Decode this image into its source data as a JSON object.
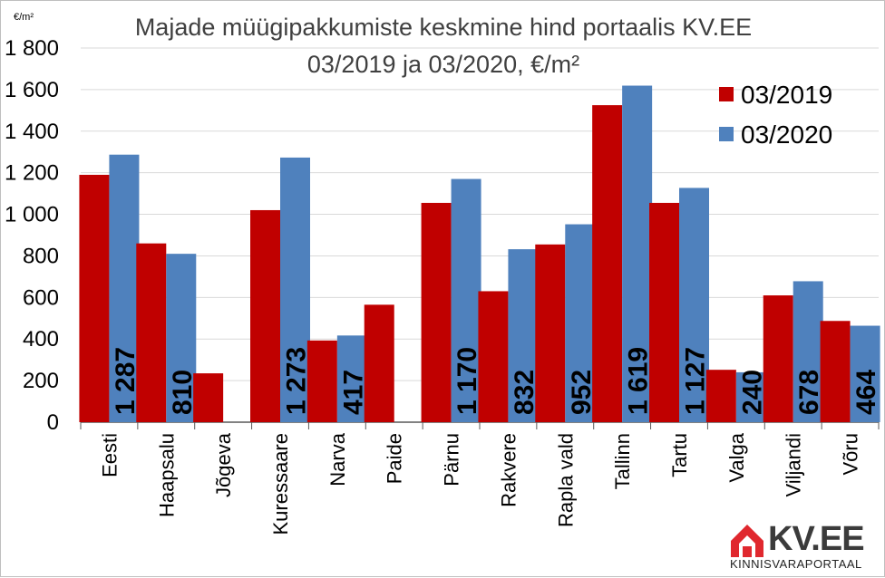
{
  "chart_data": {
    "type": "bar",
    "title": "Majade müügipakkumiste keskmine hind portaalis KV.EE",
    "subtitle": "03/2019 ja 03/2020, €/m²",
    "unit_label": "€/m²",
    "categories": [
      "Eesti",
      "Haapsalu",
      "Jõgeva",
      "Kuressaare",
      "Narva",
      "Paide",
      "Pärnu",
      "Rakvere",
      "Rapla vald",
      "Tallinn",
      "Tartu",
      "Valga",
      "Viljandi",
      "Võru"
    ],
    "series": [
      {
        "name": "03/2019",
        "color": "#c00000",
        "values": [
          1190,
          860,
          235,
          1020,
          393,
          565,
          1055,
          630,
          855,
          1525,
          1055,
          252,
          610,
          487
        ]
      },
      {
        "name": "03/2020",
        "color": "#4f81bd",
        "values": [
          1287,
          810,
          null,
          1273,
          417,
          null,
          1170,
          832,
          952,
          1619,
          1127,
          240,
          678,
          464
        ]
      }
    ],
    "data_labels": [
      "1 287",
      "810",
      "",
      "1 273",
      "417",
      "",
      "1 170",
      "832",
      "952",
      "1 619",
      "1 127",
      "240",
      "678",
      "464"
    ],
    "y_ticks": [
      "0",
      "200",
      "400",
      "600",
      "800",
      "1 000",
      "1 200",
      "1 400",
      "1 600",
      "1 800"
    ],
    "ylim": [
      0,
      1800
    ],
    "grid": true,
    "legend_position": "top-right"
  },
  "logo": {
    "text": "KV.EE",
    "subtext": "KINNISVARAPORTAAL",
    "color": "#e0282e"
  }
}
